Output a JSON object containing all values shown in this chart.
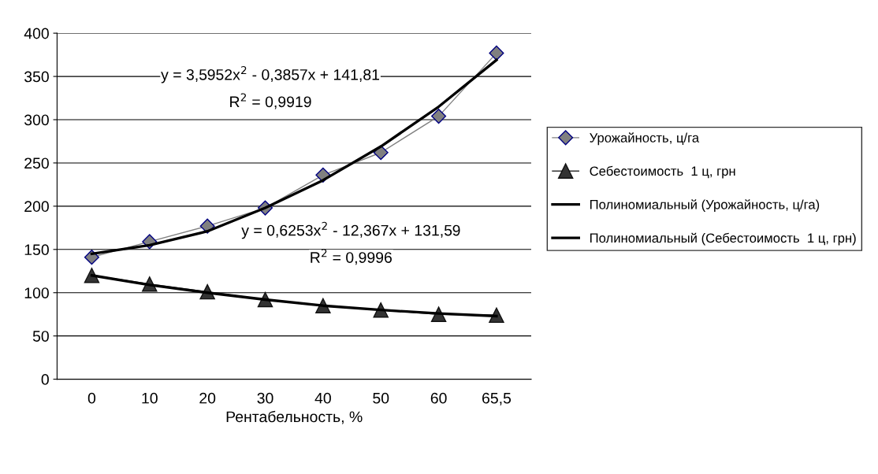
{
  "chart_data": {
    "type": "line",
    "xlabel": "Рентабельность, %",
    "categories": [
      "0",
      "10",
      "20",
      "30",
      "40",
      "50",
      "60",
      "65,5"
    ],
    "series": [
      {
        "name": "Урожайность, ц/га",
        "color": "#808080",
        "marker": "diamond",
        "values": [
          141,
          159,
          177,
          198,
          236,
          262,
          304,
          377
        ]
      },
      {
        "name": "Себестоимость  1 ц, грн",
        "color": "#333333",
        "marker": "triangle",
        "values": [
          120,
          110,
          101,
          92,
          85,
          80,
          75,
          74
        ]
      },
      {
        "name": "Полиномиальный (Урожайность, ц/га)",
        "color": "#000000",
        "marker": "none",
        "values": [
          145,
          155,
          171,
          198,
          230,
          269,
          315,
          369
        ]
      },
      {
        "name": "Полиномиальный (Себестоимость  1 ц, грн)",
        "color": "#000000",
        "marker": "none",
        "values": [
          120,
          109,
          100,
          92,
          85,
          80,
          76,
          73
        ]
      }
    ],
    "ylim": [
      0,
      400
    ],
    "yticks": [
      0,
      50,
      100,
      150,
      200,
      250,
      300,
      350,
      400
    ],
    "grid": "y",
    "legend": "right",
    "annotations": [
      "y = 3,5952x$^{2}$ - 0,3857x + 141,81",
      "R$^{2}$ = 0,9919",
      "y = 0,6253x$^{2}$ - 12,367x + 131,59",
      "R$^{2}$ = 0,9996"
    ]
  }
}
